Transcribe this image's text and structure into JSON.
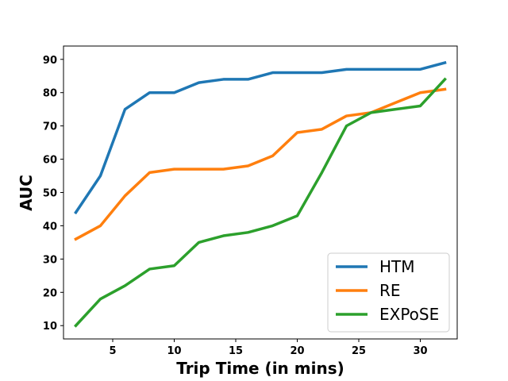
{
  "chart_data": {
    "type": "line",
    "title": "",
    "xlabel": "Trip Time (in mins)",
    "ylabel": "AUC",
    "xlim": [
      1,
      33
    ],
    "ylim": [
      6,
      94
    ],
    "xticks": [
      5,
      10,
      15,
      20,
      25,
      30
    ],
    "yticks": [
      10,
      20,
      30,
      40,
      50,
      60,
      70,
      80,
      90
    ],
    "grid": false,
    "legend_position": "bottom-right",
    "x": [
      2,
      4,
      6,
      8,
      10,
      12,
      14,
      16,
      18,
      20,
      22,
      24,
      26,
      28,
      30,
      32
    ],
    "series": [
      {
        "name": "HTM",
        "color": "#1f77b4",
        "values": [
          44,
          55,
          75,
          80,
          80,
          83,
          84,
          84,
          86,
          86,
          86,
          87,
          87,
          87,
          87,
          89
        ]
      },
      {
        "name": "RE",
        "color": "#ff7f0e",
        "values": [
          36,
          40,
          49,
          56,
          57,
          57,
          57,
          58,
          61,
          68,
          69,
          73,
          74,
          77,
          80,
          81
        ]
      },
      {
        "name": "EXPoSE",
        "color": "#2ca02c",
        "values": [
          10,
          18,
          22,
          27,
          28,
          35,
          37,
          38,
          40,
          43,
          56,
          70,
          74,
          75,
          76,
          84
        ]
      }
    ]
  }
}
